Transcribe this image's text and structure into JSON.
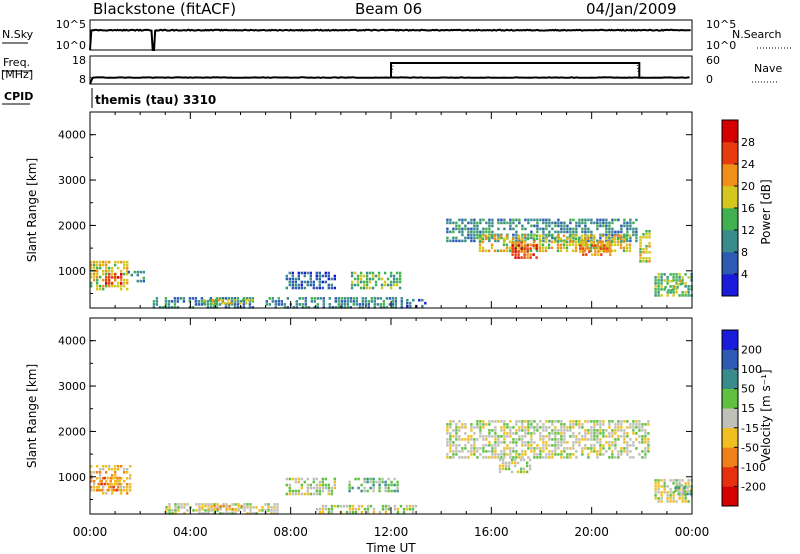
{
  "header": {
    "station": "Blackstone (fitACF)",
    "beam": "Beam 06",
    "date": "04/Jan/2009"
  },
  "panels": {
    "nsky": {
      "label": "N.Sky",
      "top_tick": "10^5",
      "bottom_tick": "10^0",
      "right_top_tick": "10^5",
      "right_bottom_tick": "10^0",
      "right_label": "N.Search"
    },
    "freq": {
      "label_line1": "Freq.",
      "label_line2": "[MHz]",
      "top_tick": "18",
      "bottom_tick": "8",
      "right_top_tick": "60",
      "right_bottom_tick": "0",
      "right_label": "Nave"
    },
    "cpid": {
      "label": "CPID",
      "program": "themis (tau) 3310"
    }
  },
  "colorbars": {
    "power": {
      "label": "Power [dB]",
      "ticks": [
        "4",
        "8",
        "12",
        "16",
        "20",
        "24",
        "28"
      ],
      "colors": [
        "#1a1adb",
        "#2c5ab4",
        "#3a8c8c",
        "#40b050",
        "#d4c820",
        "#f09018",
        "#e83c10",
        "#d40000"
      ]
    },
    "velocity": {
      "label": "Velocity [m s⁻¹]",
      "ticks": [
        "200",
        "100",
        "50",
        "15",
        "-15",
        "-50",
        "-100",
        "-200"
      ],
      "colors": [
        "#1a1adb",
        "#2c5ab4",
        "#3a8c8c",
        "#60c040",
        "#c0c0b8",
        "#f0c020",
        "#f08018",
        "#e83010",
        "#d40000"
      ]
    }
  },
  "chart_data": [
    {
      "type": "heatmap",
      "title": "Power",
      "ylabel": "Slant Range [km]",
      "ylim": [
        180,
        4500
      ],
      "xlim": [
        0,
        24
      ],
      "yticks": [
        "1000",
        "2000",
        "3000",
        "4000"
      ],
      "regions": [
        {
          "t0": 0.0,
          "t1": 1.5,
          "r0": 620,
          "r1": 1220,
          "level": 4
        },
        {
          "t0": 0.6,
          "t1": 1.3,
          "r0": 700,
          "r1": 950,
          "level": 6
        },
        {
          "t0": 1.5,
          "t1": 2.2,
          "r0": 750,
          "r1": 1000,
          "level": 2
        },
        {
          "t0": 2.5,
          "t1": 6.5,
          "r0": 200,
          "r1": 420,
          "level": 2
        },
        {
          "t0": 4.5,
          "t1": 6.5,
          "r0": 250,
          "r1": 380,
          "level": 4
        },
        {
          "t0": 7.8,
          "t1": 9.8,
          "r0": 620,
          "r1": 980,
          "level": 1
        },
        {
          "t0": 7.0,
          "t1": 12.5,
          "r0": 200,
          "r1": 420,
          "level": 2
        },
        {
          "t0": 10.4,
          "t1": 12.4,
          "r0": 620,
          "r1": 980,
          "level": 3
        },
        {
          "t0": 12.6,
          "t1": 13.4,
          "r0": 200,
          "r1": 380,
          "level": 1
        },
        {
          "t0": 14.2,
          "t1": 21.8,
          "r0": 1650,
          "r1": 2150,
          "level": 2
        },
        {
          "t0": 15.5,
          "t1": 21.5,
          "r0": 1450,
          "r1": 1800,
          "level": 4
        },
        {
          "t0": 16.8,
          "t1": 17.8,
          "r0": 1300,
          "r1": 1650,
          "level": 6
        },
        {
          "t0": 19.5,
          "t1": 20.8,
          "r0": 1350,
          "r1": 1650,
          "level": 5
        },
        {
          "t0": 21.9,
          "t1": 22.3,
          "r0": 1200,
          "r1": 1900,
          "level": 4
        },
        {
          "t0": 22.5,
          "t1": 24.0,
          "r0": 450,
          "r1": 950,
          "level": 3
        },
        {
          "t0": 22.9,
          "t1": 23.6,
          "r0": 600,
          "r1": 800,
          "level": 4
        }
      ]
    },
    {
      "type": "heatmap",
      "title": "Velocity",
      "ylabel": "Slant Range [km]",
      "ylim": [
        180,
        4500
      ],
      "xlim": [
        0,
        24
      ],
      "yticks": [
        "1000",
        "2000",
        "3000",
        "4000"
      ],
      "regions": [
        {
          "t0": 0.0,
          "t1": 1.6,
          "r0": 620,
          "r1": 1260,
          "level": 5
        },
        {
          "t0": 0.3,
          "t1": 1.2,
          "r0": 700,
          "r1": 1000,
          "level": 6
        },
        {
          "t0": 3.0,
          "t1": 7.5,
          "r0": 200,
          "r1": 420,
          "level": 4
        },
        {
          "t0": 4.2,
          "t1": 6.0,
          "r0": 250,
          "r1": 380,
          "level": 5
        },
        {
          "t0": 7.8,
          "t1": 9.8,
          "r0": 620,
          "r1": 980,
          "level": 4
        },
        {
          "t0": 10.3,
          "t1": 12.3,
          "r0": 650,
          "r1": 980,
          "level": 3
        },
        {
          "t0": 9.0,
          "t1": 13.0,
          "r0": 200,
          "r1": 380,
          "level": 4
        },
        {
          "t0": 14.2,
          "t1": 22.3,
          "r0": 1450,
          "r1": 2250,
          "level": 4
        },
        {
          "t0": 16.3,
          "t1": 17.5,
          "r0": 1100,
          "r1": 1400,
          "level": 4
        },
        {
          "t0": 22.5,
          "t1": 24.0,
          "r0": 450,
          "r1": 950,
          "level": 4
        },
        {
          "t0": 23.3,
          "t1": 24.0,
          "r0": 600,
          "r1": 850,
          "level": 3
        }
      ]
    }
  ],
  "xaxis": {
    "label": "Time UT",
    "ticks": [
      "00:00",
      "04:00",
      "08:00",
      "12:00",
      "16:00",
      "20:00",
      "00:00"
    ]
  }
}
